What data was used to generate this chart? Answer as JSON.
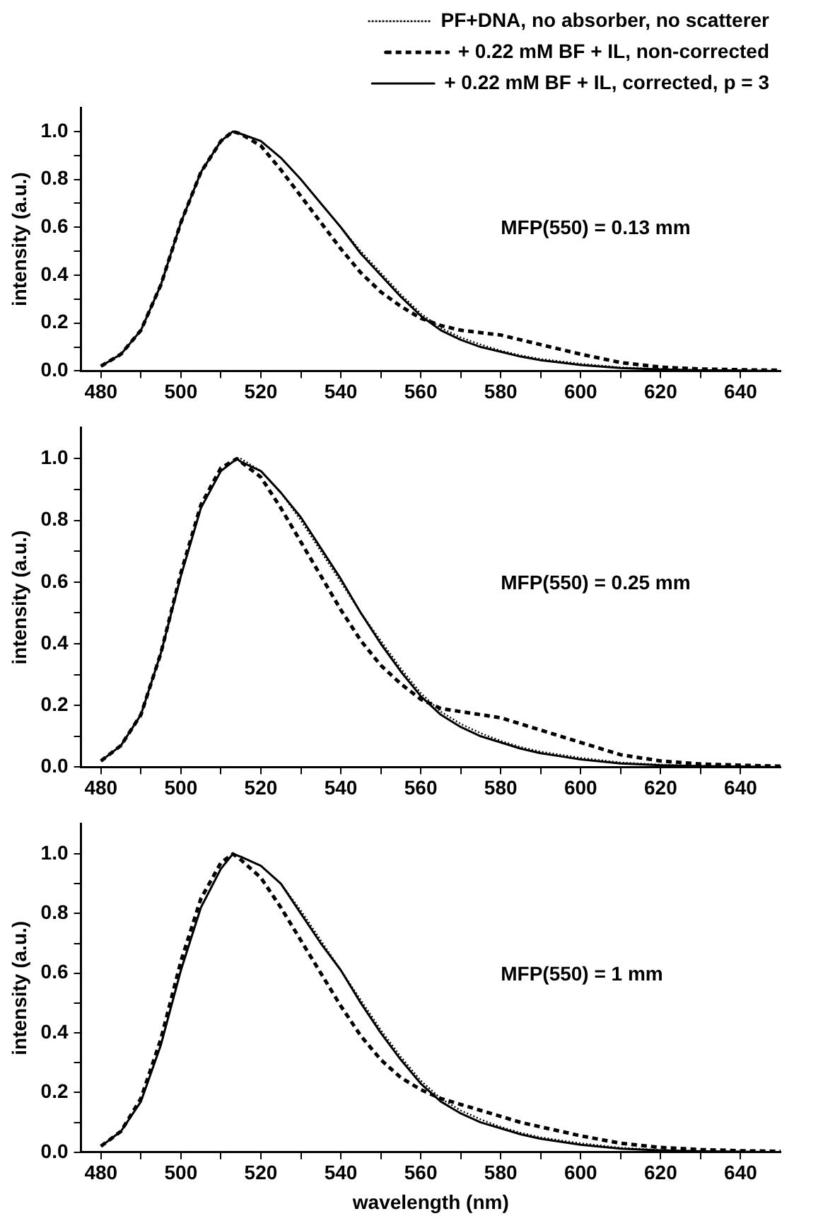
{
  "chart_data": [
    {
      "type": "line",
      "ylabel": "intensity (a.u.)",
      "annotations": [
        "MFP(550) = 0.13 mm"
      ],
      "legend": "top right",
      "marker": "none",
      "grid": false,
      "xlim": [
        475,
        650
      ],
      "xticks": [
        480,
        {
          "value": 490,
          "label": null
        },
        500,
        {
          "value": 510,
          "label": null
        },
        520,
        {
          "value": 530,
          "label": null
        },
        540,
        {
          "value": 550,
          "label": null
        },
        560,
        {
          "value": 570,
          "label": null
        },
        580,
        {
          "value": 590,
          "label": null
        },
        600,
        {
          "value": 610,
          "label": null
        },
        620,
        {
          "value": 630,
          "label": null
        },
        640
      ],
      "ylim": [
        0,
        1.1
      ],
      "yticks": [
        {
          "value": 0,
          "label": "0.0"
        },
        {
          "value": 0.1,
          "label": null
        },
        0.2,
        {
          "value": 0.3,
          "label": null
        },
        0.4,
        {
          "value": 0.5,
          "label": null
        },
        0.6,
        {
          "value": 0.7,
          "label": null
        },
        0.8,
        {
          "value": 0.9,
          "label": null
        },
        {
          "value": 1,
          "label": "1.0"
        }
      ],
      "x": [
        480,
        485,
        490,
        495,
        500,
        505,
        510,
        513,
        515,
        520,
        525,
        530,
        535,
        540,
        545,
        550,
        555,
        560,
        565,
        570,
        575,
        580,
        585,
        590,
        595,
        600,
        610,
        620,
        630,
        640,
        650
      ],
      "series": [
        {
          "name": "PF+DNA, no absorber, no scatterer",
          "color": "#000000",
          "line_style": "dotted",
          "values": [
            0.02,
            0.07,
            0.17,
            0.36,
            0.62,
            0.83,
            0.96,
            1.0,
            0.99,
            0.96,
            0.89,
            0.8,
            0.7,
            0.6,
            0.5,
            0.41,
            0.32,
            0.24,
            0.18,
            0.14,
            0.11,
            0.085,
            0.065,
            0.05,
            0.04,
            0.03,
            0.015,
            0.008,
            0.004,
            0.002,
            0.0
          ]
        },
        {
          "name": "+ 0.22 mM BF + IL, non-corrected",
          "color": "#000000",
          "line_style": "dashed",
          "values": [
            0.02,
            0.07,
            0.17,
            0.36,
            0.62,
            0.83,
            0.96,
            1.0,
            0.99,
            0.94,
            0.84,
            0.73,
            0.62,
            0.51,
            0.41,
            0.33,
            0.27,
            0.22,
            0.19,
            0.17,
            0.16,
            0.15,
            0.13,
            0.11,
            0.09,
            0.07,
            0.035,
            0.016,
            0.008,
            0.005,
            0.003
          ]
        },
        {
          "name": "+ 0.22 mM BF + IL, corrected, p = 3",
          "color": "#000000",
          "line_style": "solid",
          "values": [
            0.02,
            0.07,
            0.17,
            0.36,
            0.62,
            0.83,
            0.96,
            1.0,
            0.99,
            0.96,
            0.89,
            0.8,
            0.7,
            0.6,
            0.49,
            0.4,
            0.31,
            0.23,
            0.17,
            0.13,
            0.1,
            0.08,
            0.06,
            0.045,
            0.035,
            0.025,
            0.012,
            0.006,
            0.003,
            0.002,
            0.0
          ]
        }
      ]
    },
    {
      "type": "line",
      "ylabel": "intensity (a.u.)",
      "annotations": [
        "MFP(550) = 0.25 mm"
      ],
      "marker": "none",
      "grid": false,
      "xlim": [
        475,
        650
      ],
      "xticks": [
        480,
        {
          "value": 490,
          "label": null
        },
        500,
        {
          "value": 510,
          "label": null
        },
        520,
        {
          "value": 530,
          "label": null
        },
        540,
        {
          "value": 550,
          "label": null
        },
        560,
        {
          "value": 570,
          "label": null
        },
        580,
        {
          "value": 590,
          "label": null
        },
        600,
        {
          "value": 610,
          "label": null
        },
        620,
        {
          "value": 630,
          "label": null
        },
        640
      ],
      "ylim": [
        0,
        1.1
      ],
      "yticks": [
        {
          "value": 0,
          "label": "0.0"
        },
        {
          "value": 0.1,
          "label": null
        },
        0.2,
        {
          "value": 0.3,
          "label": null
        },
        0.4,
        {
          "value": 0.5,
          "label": null
        },
        0.6,
        {
          "value": 0.7,
          "label": null
        },
        0.8,
        {
          "value": 0.9,
          "label": null
        },
        {
          "value": 1,
          "label": "1.0"
        }
      ],
      "x": [
        480,
        485,
        490,
        495,
        500,
        505,
        510,
        514,
        515,
        520,
        525,
        530,
        535,
        540,
        545,
        550,
        555,
        560,
        565,
        570,
        575,
        580,
        585,
        590,
        595,
        600,
        610,
        620,
        630,
        640,
        650
      ],
      "series": [
        {
          "color": "#000000",
          "line_style": "dotted",
          "values": [
            0.02,
            0.07,
            0.17,
            0.37,
            0.62,
            0.84,
            0.96,
            1.0,
            1.0,
            0.96,
            0.89,
            0.8,
            0.7,
            0.6,
            0.5,
            0.41,
            0.32,
            0.24,
            0.18,
            0.14,
            0.11,
            0.085,
            0.065,
            0.05,
            0.04,
            0.03,
            0.015,
            0.008,
            0.004,
            0.002,
            0.0
          ]
        },
        {
          "color": "#000000",
          "line_style": "dashed",
          "values": [
            0.02,
            0.07,
            0.17,
            0.37,
            0.63,
            0.85,
            0.97,
            1.0,
            0.99,
            0.94,
            0.84,
            0.73,
            0.62,
            0.51,
            0.41,
            0.33,
            0.27,
            0.22,
            0.19,
            0.18,
            0.17,
            0.16,
            0.14,
            0.12,
            0.1,
            0.08,
            0.04,
            0.02,
            0.01,
            0.006,
            0.003
          ]
        },
        {
          "color": "#000000",
          "line_style": "solid",
          "values": [
            0.02,
            0.07,
            0.17,
            0.37,
            0.62,
            0.84,
            0.96,
            1.0,
            0.99,
            0.96,
            0.89,
            0.81,
            0.71,
            0.61,
            0.5,
            0.4,
            0.31,
            0.23,
            0.17,
            0.13,
            0.1,
            0.08,
            0.06,
            0.045,
            0.035,
            0.025,
            0.012,
            0.006,
            0.003,
            0.002,
            0.0
          ]
        }
      ]
    },
    {
      "type": "line",
      "xlabel": "wavelength (nm)",
      "ylabel": "intensity (a.u.)",
      "annotations": [
        "MFP(550) = 1 mm"
      ],
      "marker": "none",
      "grid": false,
      "xlim": [
        475,
        650
      ],
      "xticks": [
        480,
        {
          "value": 490,
          "label": null
        },
        500,
        {
          "value": 510,
          "label": null
        },
        520,
        {
          "value": 530,
          "label": null
        },
        540,
        {
          "value": 550,
          "label": null
        },
        560,
        {
          "value": 570,
          "label": null
        },
        580,
        {
          "value": 590,
          "label": null
        },
        600,
        {
          "value": 610,
          "label": null
        },
        620,
        {
          "value": 630,
          "label": null
        },
        640
      ],
      "ylim": [
        0,
        1.1
      ],
      "yticks": [
        {
          "value": 0,
          "label": "0.0"
        },
        {
          "value": 0.1,
          "label": null
        },
        0.2,
        {
          "value": 0.3,
          "label": null
        },
        0.4,
        {
          "value": 0.5,
          "label": null
        },
        0.6,
        {
          "value": 0.7,
          "label": null
        },
        0.8,
        {
          "value": 0.9,
          "label": null
        },
        {
          "value": 1,
          "label": "1.0"
        }
      ],
      "x": [
        480,
        485,
        490,
        495,
        500,
        505,
        510,
        513,
        515,
        520,
        525,
        530,
        535,
        540,
        545,
        550,
        555,
        560,
        565,
        570,
        575,
        580,
        585,
        590,
        595,
        600,
        610,
        620,
        630,
        640,
        650
      ],
      "series": [
        {
          "color": "#000000",
          "line_style": "dotted",
          "values": [
            0.02,
            0.07,
            0.17,
            0.36,
            0.61,
            0.82,
            0.95,
            1.0,
            0.99,
            0.96,
            0.9,
            0.81,
            0.71,
            0.61,
            0.51,
            0.41,
            0.32,
            0.24,
            0.18,
            0.14,
            0.11,
            0.085,
            0.065,
            0.05,
            0.04,
            0.03,
            0.015,
            0.008,
            0.004,
            0.002,
            0.0
          ]
        },
        {
          "color": "#000000",
          "line_style": "dashed",
          "values": [
            0.02,
            0.07,
            0.18,
            0.38,
            0.64,
            0.85,
            0.97,
            1.0,
            0.98,
            0.92,
            0.82,
            0.71,
            0.6,
            0.49,
            0.39,
            0.31,
            0.25,
            0.21,
            0.18,
            0.16,
            0.14,
            0.12,
            0.1,
            0.085,
            0.07,
            0.055,
            0.03,
            0.016,
            0.009,
            0.005,
            0.003
          ]
        },
        {
          "color": "#000000",
          "line_style": "solid",
          "values": [
            0.02,
            0.07,
            0.17,
            0.36,
            0.61,
            0.82,
            0.95,
            1.0,
            0.99,
            0.96,
            0.9,
            0.8,
            0.7,
            0.61,
            0.5,
            0.4,
            0.31,
            0.23,
            0.17,
            0.13,
            0.1,
            0.08,
            0.06,
            0.045,
            0.035,
            0.025,
            0.012,
            0.006,
            0.003,
            0.002,
            0.0
          ]
        }
      ]
    }
  ]
}
